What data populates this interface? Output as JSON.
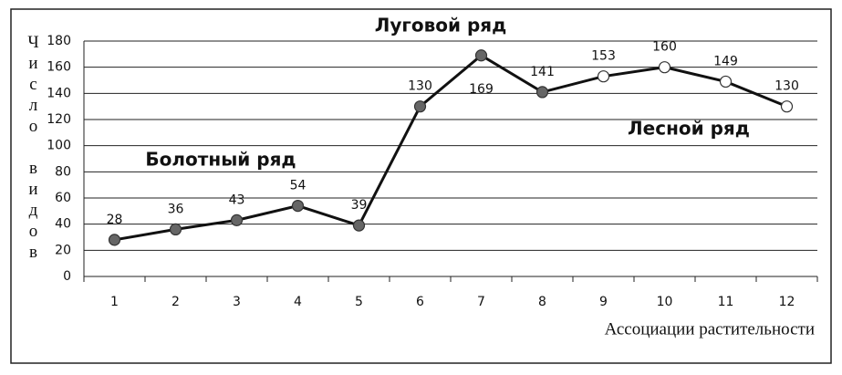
{
  "chart_data": {
    "type": "line",
    "categories": [
      "1",
      "2",
      "3",
      "4",
      "5",
      "6",
      "7",
      "8",
      "9",
      "10",
      "11",
      "12"
    ],
    "values": [
      28,
      36,
      43,
      54,
      39,
      130,
      169,
      141,
      153,
      160,
      149,
      130
    ],
    "marker_colors": [
      "#666",
      "#666",
      "#666",
      "#666",
      "#666",
      "#666",
      "#666",
      "#666",
      "#fff",
      "#fff",
      "#fff",
      "#fff"
    ],
    "color": "#111",
    "y_label": "Число видов",
    "x_label": "Ассоциации растительности",
    "annotations": [
      "Луговой ряд",
      "Болотный ряд",
      "Лесной ряд"
    ],
    "ylim": [
      0,
      180
    ],
    "yticks": [
      0,
      20,
      40,
      60,
      80,
      100,
      120,
      140,
      160,
      180
    ],
    "grid": true
  }
}
